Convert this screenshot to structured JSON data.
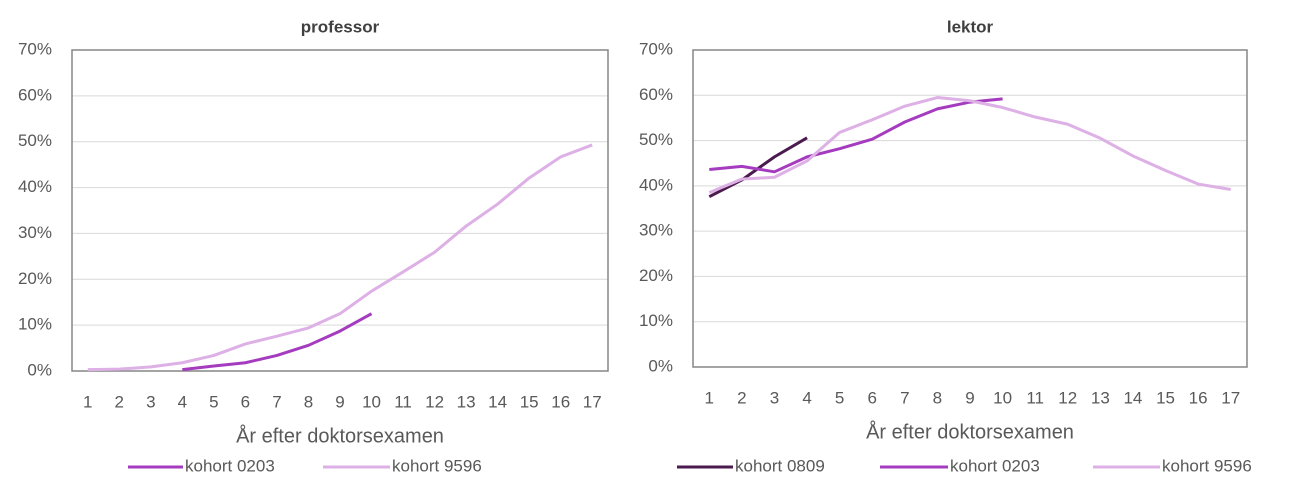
{
  "chart_data": [
    {
      "type": "line",
      "title": "professor",
      "x_label": "År efter doktorsexamen",
      "categories": [
        "1",
        "2",
        "3",
        "4",
        "5",
        "6",
        "7",
        "8",
        "9",
        "10",
        "11",
        "12",
        "13",
        "14",
        "15",
        "16",
        "17"
      ],
      "series": [
        {
          "name": "kohort 0203",
          "color": "#a53cbf",
          "values": [
            null,
            null,
            null,
            0.3,
            1.1,
            1.8,
            3.4,
            5.6,
            8.7,
            12.5,
            null,
            null,
            null,
            null,
            null,
            null,
            null
          ]
        },
        {
          "name": "kohort 9596",
          "color": "#ddb0e6",
          "values": [
            0.3,
            0.4,
            0.9,
            1.8,
            3.4,
            5.9,
            7.6,
            9.4,
            12.5,
            17.4,
            21.6,
            25.9,
            31.6,
            36.4,
            42.1,
            46.7,
            49.3
          ]
        }
      ],
      "ylim": [
        0,
        70
      ],
      "yticks": [
        {
          "value": 0,
          "label": "0%"
        },
        {
          "value": 10,
          "label": "10%"
        },
        {
          "value": 20,
          "label": "20%"
        },
        {
          "value": 30,
          "label": "30%"
        },
        {
          "value": 40,
          "label": "40%"
        },
        {
          "value": 50,
          "label": "50%"
        },
        {
          "value": 60,
          "label": "60%"
        },
        {
          "value": 70,
          "label": "70%"
        }
      ],
      "grid": true,
      "legend": "bottom"
    },
    {
      "type": "line",
      "title": "lektor",
      "x_label": "År efter doktorsexamen",
      "categories": [
        "1",
        "2",
        "3",
        "4",
        "5",
        "6",
        "7",
        "8",
        "9",
        "10",
        "11",
        "12",
        "13",
        "14",
        "15",
        "16",
        "17"
      ],
      "series": [
        {
          "name": "kohort 0809",
          "color": "#4b1a4f",
          "values": [
            37.6,
            41.3,
            46.4,
            50.6,
            null,
            null,
            null,
            null,
            null,
            null,
            null,
            null,
            null,
            null,
            null,
            null,
            null
          ]
        },
        {
          "name": "kohort 0203",
          "color": "#a53cbf",
          "values": [
            43.6,
            44.3,
            43.1,
            46.4,
            48.2,
            50.3,
            54.1,
            57.0,
            58.5,
            59.2,
            null,
            null,
            null,
            null,
            null,
            null,
            null
          ]
        },
        {
          "name": "kohort 9596",
          "color": "#ddb0e6",
          "values": [
            38.5,
            41.5,
            41.9,
            45.5,
            51.8,
            54.6,
            57.6,
            59.5,
            58.8,
            57.3,
            55.2,
            53.6,
            50.5,
            46.6,
            43.4,
            40.4,
            39.2
          ]
        }
      ],
      "ylim": [
        0,
        70
      ],
      "yticks": [
        {
          "value": 0,
          "label": "0%"
        },
        {
          "value": 10,
          "label": "10%"
        },
        {
          "value": 20,
          "label": "20%"
        },
        {
          "value": 30,
          "label": "30%"
        },
        {
          "value": 40,
          "label": "40%"
        },
        {
          "value": 50,
          "label": "50%"
        },
        {
          "value": 60,
          "label": "60%"
        },
        {
          "value": 70,
          "label": "70%"
        }
      ],
      "grid": true,
      "legend": "bottom"
    }
  ]
}
